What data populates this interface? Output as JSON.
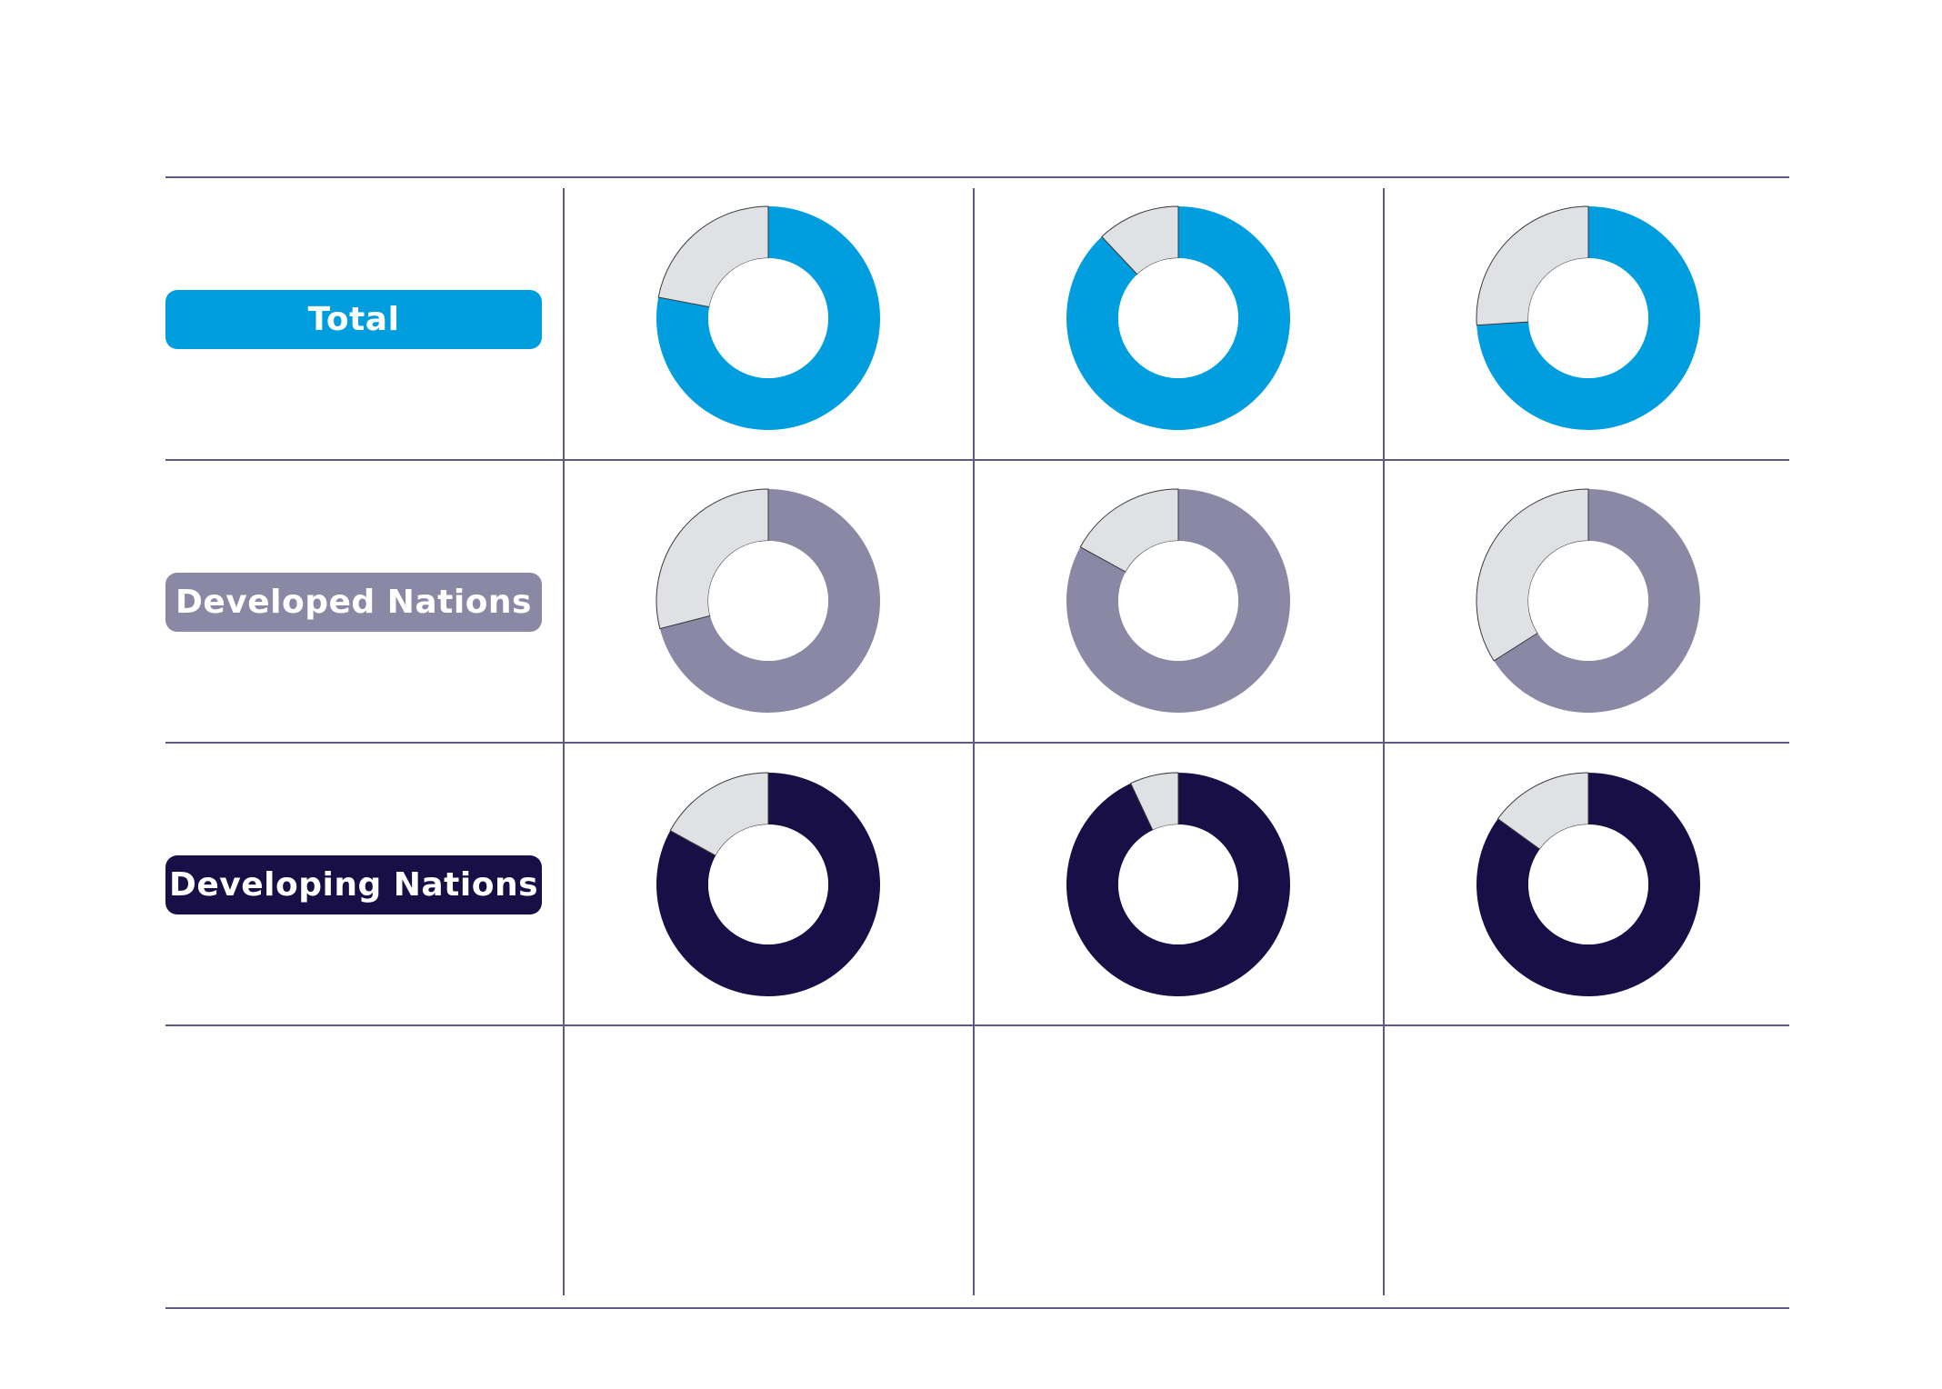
{
  "colors": {
    "remainder": "#e0e1e4",
    "remainder_stroke": "#3a3a3a",
    "grid_line": "#5d5a86",
    "background": "#ffffff"
  },
  "chart_data": {
    "type": "donut-grid",
    "rows": [
      {
        "label": "Total",
        "color": "#009ddf",
        "values": [
          78,
          88,
          74
        ]
      },
      {
        "label": "Developed Nations",
        "color": "#8b88a6",
        "values": [
          71,
          83,
          66
        ]
      },
      {
        "label": "Developing Nations",
        "color": "#170f45",
        "values": [
          83,
          93,
          85
        ]
      }
    ],
    "unit": "percent",
    "remainder_color": "#e0e1e4"
  }
}
